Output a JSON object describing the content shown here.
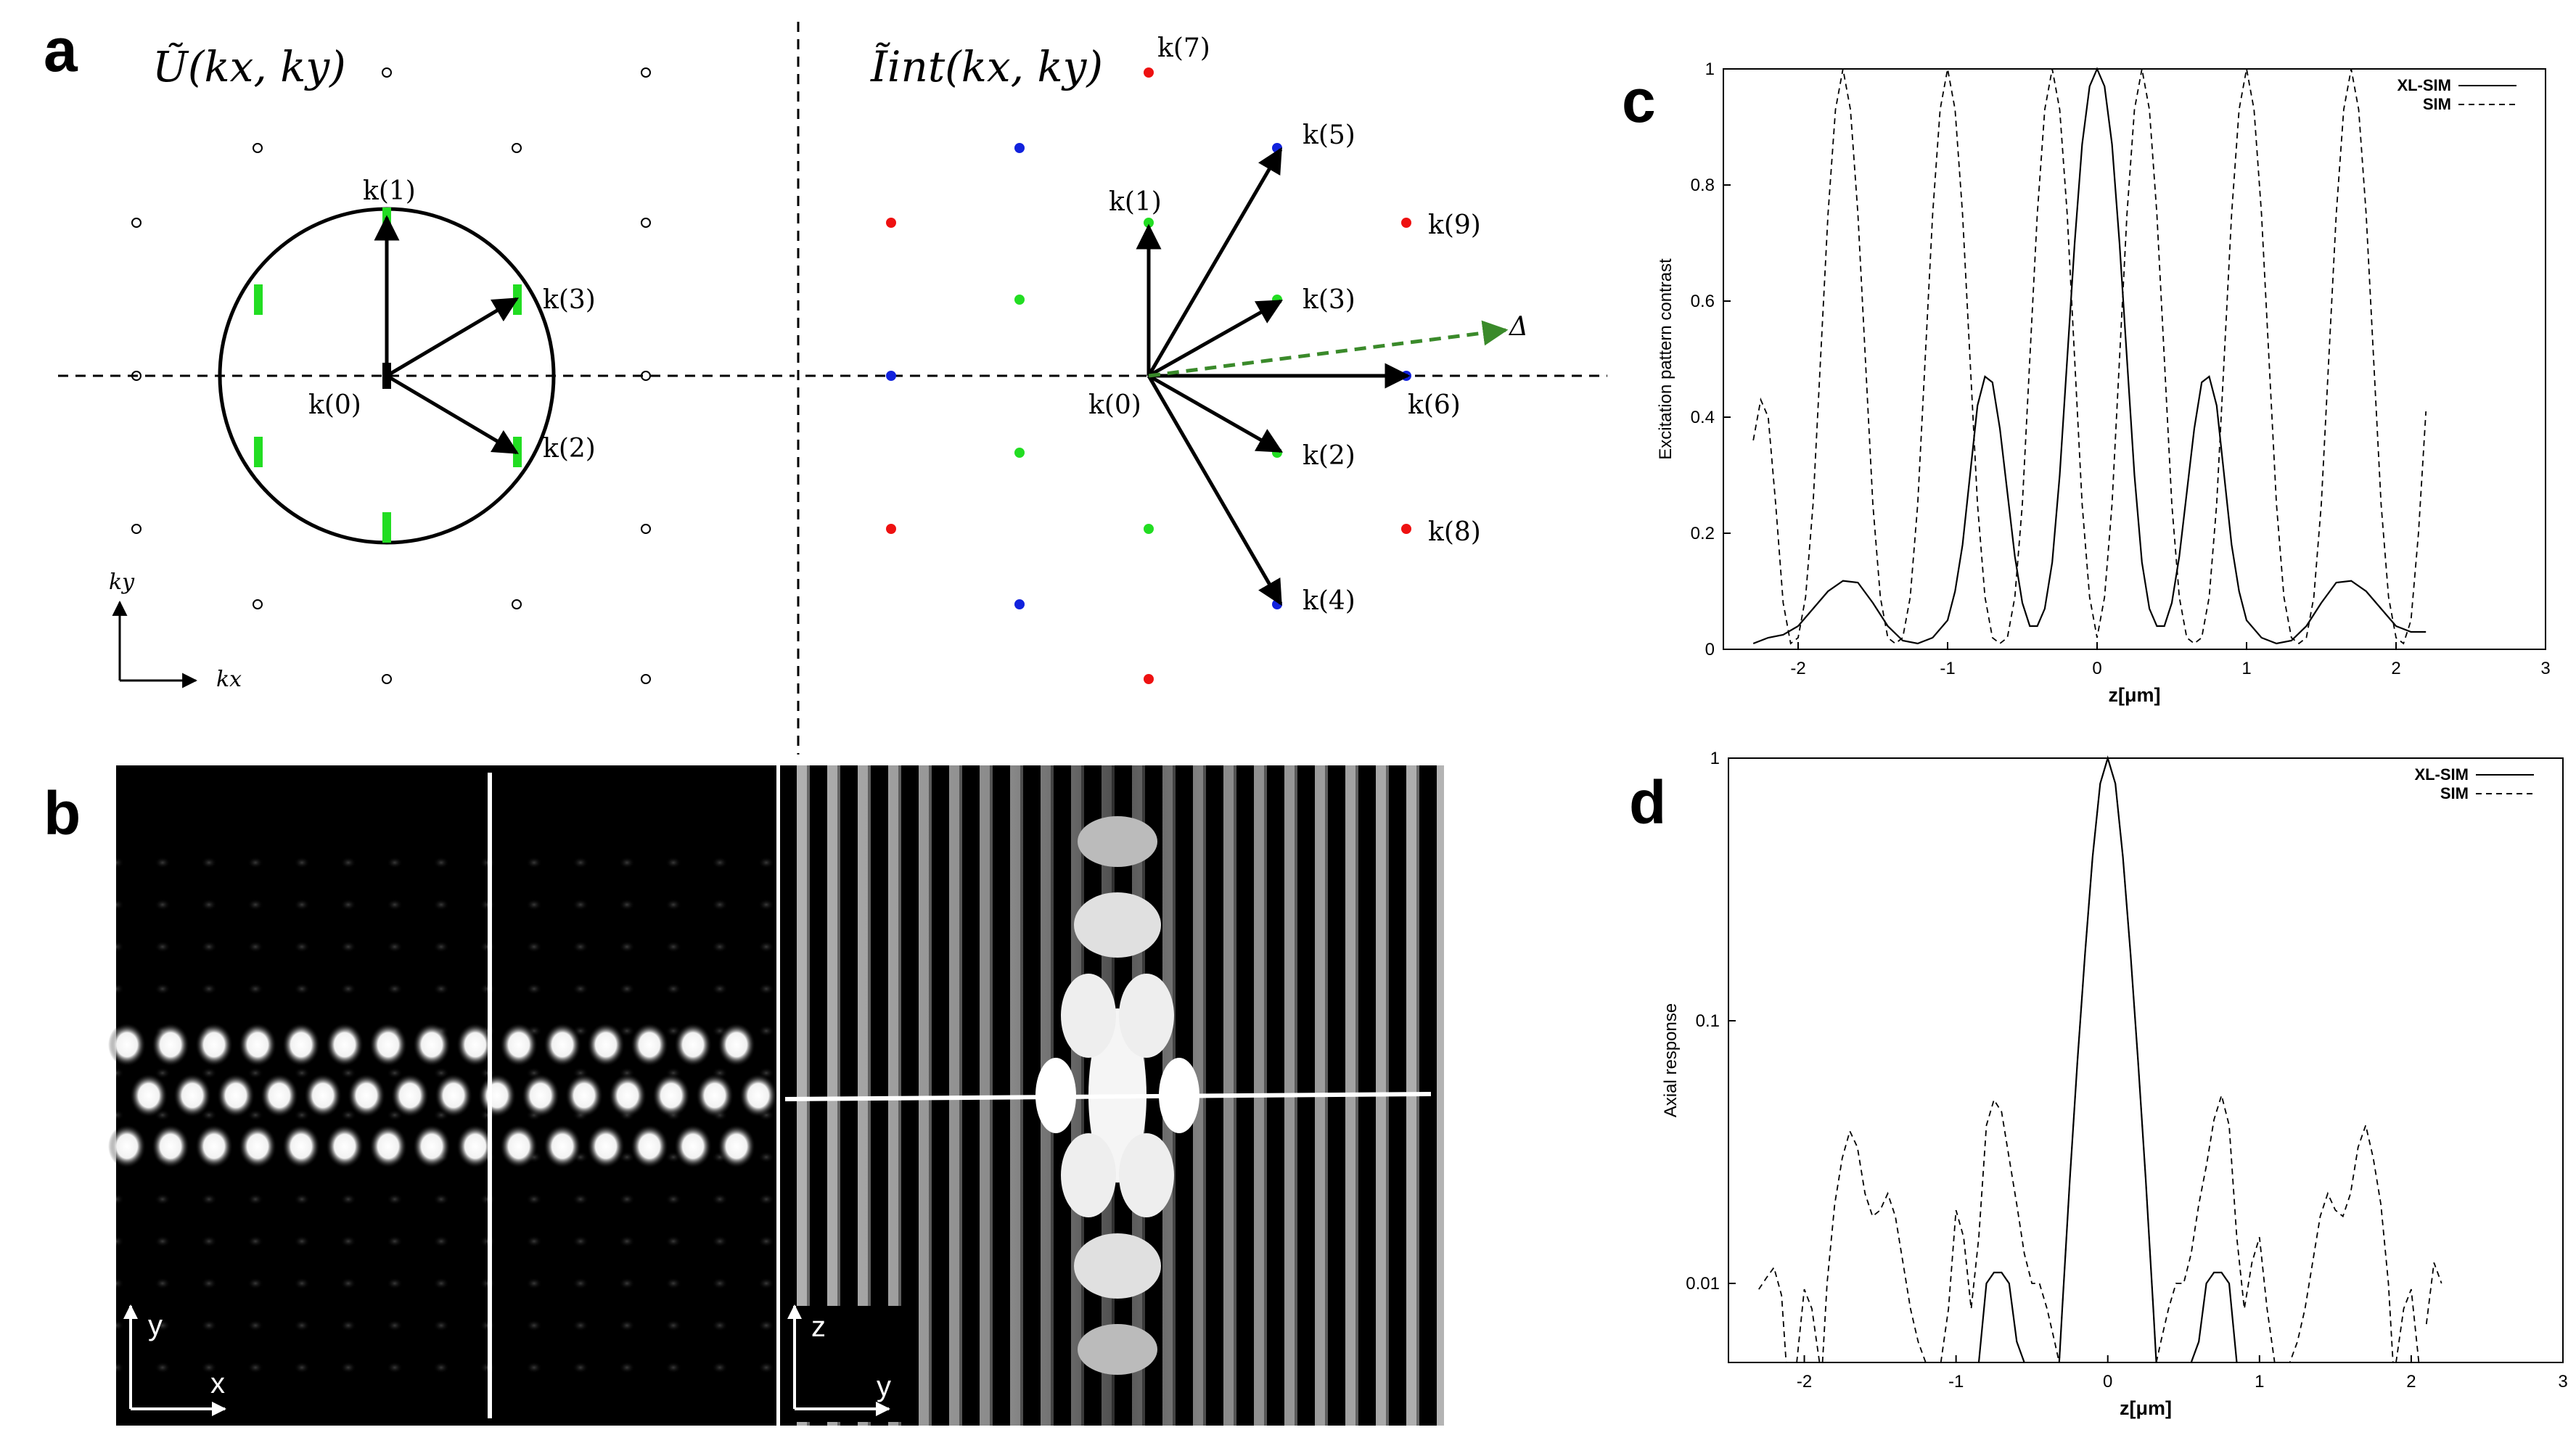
{
  "panels": {
    "a": {
      "letter": "a",
      "left_title": "Ũ(kx, ky)",
      "right_title": "Ĩint(kx, ky)",
      "kx": "kx",
      "ky": "ky",
      "left_vectors": [
        "k(0)",
        "k(1)",
        "k(2)",
        "k(3)"
      ],
      "right_vectors": [
        "k(0)",
        "k(1)",
        "k(2)",
        "k(3)",
        "k(4)",
        "k(5)",
        "k(6)",
        "k(7)",
        "k(8)",
        "k(9)"
      ],
      "delta": "Δ",
      "colors": {
        "green": "#22dd22",
        "red": "#ee1111",
        "blue": "#1122dd",
        "dashed_arrow": "#3a8a2a"
      }
    },
    "b": {
      "letter": "b",
      "left_axes": {
        "vertical": "y",
        "horizontal": "x"
      },
      "right_axes": {
        "vertical": "z",
        "horizontal": "y"
      }
    },
    "c": {
      "letter": "c"
    },
    "d": {
      "letter": "d"
    }
  },
  "chart_data": [
    {
      "id": "c",
      "type": "line",
      "title": "",
      "xlabel": "z[μm]",
      "ylabel": "Excitation pattern contrast",
      "xlim": [
        -2.5,
        3
      ],
      "ylim": [
        0,
        1
      ],
      "xticks": [
        "-2",
        "-1",
        "0",
        "1",
        "2",
        "3"
      ],
      "yticks": [
        "0",
        "0.2",
        "0.4",
        "0.6",
        "0.8",
        "1"
      ],
      "legend": {
        "placement": "top-right",
        "entries": [
          "XL-SIM",
          "SIM"
        ]
      },
      "series": [
        {
          "name": "XL-SIM",
          "style": "solid",
          "x": [
            -2.3,
            -2.2,
            -2.1,
            -2.0,
            -1.9,
            -1.8,
            -1.7,
            -1.6,
            -1.5,
            -1.4,
            -1.3,
            -1.2,
            -1.1,
            -1.0,
            -0.95,
            -0.9,
            -0.85,
            -0.8,
            -0.75,
            -0.7,
            -0.65,
            -0.6,
            -0.55,
            -0.5,
            -0.45,
            -0.4,
            -0.35,
            -0.3,
            -0.25,
            -0.2,
            -0.15,
            -0.1,
            -0.05,
            0.0,
            0.05,
            0.1,
            0.15,
            0.2,
            0.25,
            0.3,
            0.35,
            0.4,
            0.45,
            0.5,
            0.55,
            0.6,
            0.65,
            0.7,
            0.75,
            0.8,
            0.85,
            0.9,
            0.95,
            1.0,
            1.1,
            1.2,
            1.3,
            1.4,
            1.5,
            1.6,
            1.7,
            1.8,
            1.9,
            2.0,
            2.1,
            2.2
          ],
          "y": [
            0.01,
            0.02,
            0.025,
            0.04,
            0.07,
            0.1,
            0.118,
            0.115,
            0.08,
            0.04,
            0.015,
            0.01,
            0.02,
            0.05,
            0.1,
            0.18,
            0.3,
            0.42,
            0.47,
            0.46,
            0.38,
            0.27,
            0.16,
            0.08,
            0.04,
            0.04,
            0.07,
            0.15,
            0.3,
            0.5,
            0.7,
            0.87,
            0.97,
            1.0,
            0.97,
            0.87,
            0.7,
            0.5,
            0.3,
            0.15,
            0.07,
            0.04,
            0.04,
            0.08,
            0.16,
            0.27,
            0.38,
            0.46,
            0.47,
            0.42,
            0.3,
            0.18,
            0.1,
            0.05,
            0.02,
            0.01,
            0.015,
            0.04,
            0.08,
            0.115,
            0.118,
            0.1,
            0.07,
            0.04,
            0.03,
            0.03
          ]
        },
        {
          "name": "SIM",
          "style": "dashed",
          "x": [
            -2.3,
            -2.25,
            -2.2,
            -2.15,
            -2.1,
            -2.05,
            -2.0,
            -1.95,
            -1.9,
            -1.85,
            -1.8,
            -1.75,
            -1.7,
            -1.65,
            -1.6,
            -1.55,
            -1.5,
            -1.45,
            -1.4,
            -1.35,
            -1.3,
            -1.25,
            -1.2,
            -1.15,
            -1.1,
            -1.05,
            -1.0,
            -0.95,
            -0.9,
            -0.85,
            -0.8,
            -0.75,
            -0.7,
            -0.65,
            -0.6,
            -0.55,
            -0.5,
            -0.45,
            -0.4,
            -0.35,
            -0.3,
            -0.25,
            -0.2,
            -0.15,
            -0.1,
            -0.05,
            0.0,
            0.05,
            0.1,
            0.15,
            0.2,
            0.25,
            0.3,
            0.35,
            0.4,
            0.45,
            0.5,
            0.55,
            0.6,
            0.65,
            0.7,
            0.75,
            0.8,
            0.85,
            0.9,
            0.95,
            1.0,
            1.05,
            1.1,
            1.15,
            1.2,
            1.25,
            1.3,
            1.35,
            1.4,
            1.45,
            1.5,
            1.55,
            1.6,
            1.65,
            1.7,
            1.75,
            1.8,
            1.85,
            1.9,
            1.95,
            2.0,
            2.05,
            2.1,
            2.15,
            2.2
          ],
          "y": [
            0.36,
            0.43,
            0.4,
            0.25,
            0.08,
            0.01,
            0.02,
            0.09,
            0.25,
            0.5,
            0.75,
            0.93,
            1.0,
            0.93,
            0.75,
            0.5,
            0.25,
            0.09,
            0.02,
            0.01,
            0.02,
            0.09,
            0.25,
            0.5,
            0.75,
            0.93,
            1.0,
            0.93,
            0.75,
            0.5,
            0.25,
            0.09,
            0.02,
            0.01,
            0.02,
            0.09,
            0.25,
            0.5,
            0.75,
            0.93,
            1.0,
            0.93,
            0.75,
            0.5,
            0.25,
            0.09,
            0.02,
            0.09,
            0.25,
            0.5,
            0.75,
            0.93,
            1.0,
            0.93,
            0.75,
            0.5,
            0.25,
            0.09,
            0.02,
            0.01,
            0.02,
            0.09,
            0.25,
            0.5,
            0.75,
            0.93,
            1.0,
            0.93,
            0.75,
            0.5,
            0.25,
            0.09,
            0.02,
            0.01,
            0.02,
            0.09,
            0.25,
            0.5,
            0.75,
            0.93,
            1.0,
            0.93,
            0.75,
            0.5,
            0.25,
            0.09,
            0.02,
            0.01,
            0.05,
            0.2,
            0.41
          ]
        }
      ]
    },
    {
      "id": "d",
      "type": "line",
      "title": "",
      "xlabel": "z[μm]",
      "ylabel": "Axial response",
      "yscale": "log",
      "xlim": [
        -2.5,
        3
      ],
      "ylim": [
        0.005,
        1
      ],
      "xticks": [
        "-2",
        "-1",
        "0",
        "1",
        "2",
        "3"
      ],
      "yticks": [
        "0.01",
        "0.1",
        "1"
      ],
      "legend": {
        "placement": "top-right",
        "entries": [
          "XL-SIM",
          "SIM"
        ]
      },
      "series": [
        {
          "name": "XL-SIM",
          "style": "solid",
          "segments": [
            {
              "x": [
                -0.85,
                -0.8,
                -0.75,
                -0.7,
                -0.65,
                -0.6,
                -0.55
              ],
              "y": [
                0.005,
                0.01,
                0.011,
                0.011,
                0.01,
                0.006,
                0.005
              ]
            },
            {
              "x": [
                -0.32,
                -0.3,
                -0.25,
                -0.2,
                -0.15,
                -0.1,
                -0.05,
                0.0,
                0.05,
                0.1,
                0.15,
                0.2,
                0.25,
                0.3,
                0.32
              ],
              "y": [
                0.005,
                0.008,
                0.025,
                0.07,
                0.18,
                0.42,
                0.8,
                1.0,
                0.8,
                0.42,
                0.18,
                0.07,
                0.025,
                0.008,
                0.005
              ]
            },
            {
              "x": [
                0.55,
                0.6,
                0.65,
                0.7,
                0.75,
                0.8,
                0.85
              ],
              "y": [
                0.005,
                0.006,
                0.01,
                0.011,
                0.011,
                0.01,
                0.005
              ]
            }
          ]
        },
        {
          "name": "SIM",
          "style": "dashed",
          "segments": [
            {
              "x": [
                -2.3,
                -2.25,
                -2.2,
                -2.15,
                -2.12
              ],
              "y": [
                0.0095,
                0.0105,
                0.0115,
                0.009,
                0.005
              ]
            },
            {
              "x": [
                -2.05,
                -2.0,
                -1.95,
                -1.9
              ],
              "y": [
                0.005,
                0.0095,
                0.008,
                0.005
              ]
            },
            {
              "x": [
                -1.88,
                -1.85,
                -1.8,
                -1.75,
                -1.7,
                -1.65,
                -1.6,
                -1.55,
                -1.5,
                -1.45,
                -1.4,
                -1.35,
                -1.3,
                -1.25,
                -1.2,
                -1.17
              ],
              "y": [
                0.005,
                0.01,
                0.02,
                0.03,
                0.038,
                0.033,
                0.022,
                0.018,
                0.019,
                0.022,
                0.018,
                0.012,
                0.008,
                0.006,
                0.005,
                0.005
              ]
            },
            {
              "x": [
                -1.1,
                -1.05,
                -1.0,
                -0.95,
                -0.9,
                -0.85,
                -0.8,
                -0.75,
                -0.7,
                -0.65,
                -0.6,
                -0.55,
                -0.5,
                -0.45,
                -0.4,
                -0.35,
                -0.32
              ],
              "y": [
                0.005,
                0.008,
                0.019,
                0.015,
                0.008,
                0.015,
                0.04,
                0.05,
                0.045,
                0.03,
                0.02,
                0.013,
                0.01,
                0.01,
                0.008,
                0.006,
                0.005
              ]
            },
            {
              "x": [
                -0.32,
                -0.3,
                -0.25,
                -0.2,
                -0.15,
                -0.1,
                -0.05,
                0.0,
                0.05,
                0.1,
                0.15,
                0.2,
                0.25,
                0.3,
                0.32
              ],
              "y": [
                0.005,
                0.008,
                0.025,
                0.07,
                0.18,
                0.42,
                0.8,
                1.0,
                0.8,
                0.42,
                0.18,
                0.07,
                0.025,
                0.008,
                0.005
              ]
            },
            {
              "x": [
                0.32,
                0.35,
                0.4,
                0.45,
                0.5,
                0.55,
                0.6,
                0.65,
                0.7,
                0.75,
                0.8,
                0.85,
                0.9,
                0.95,
                1.0,
                1.05,
                1.1
              ],
              "y": [
                0.005,
                0.006,
                0.008,
                0.01,
                0.01,
                0.013,
                0.02,
                0.028,
                0.042,
                0.052,
                0.04,
                0.015,
                0.008,
                0.012,
                0.015,
                0.008,
                0.005
              ]
            },
            {
              "x": [
                1.17,
                1.2,
                1.25,
                1.3,
                1.35,
                1.4,
                1.45,
                1.5,
                1.55,
                1.6,
                1.65,
                1.7,
                1.75,
                1.8,
                1.85,
                1.88
              ],
              "y": [
                0.005,
                0.005,
                0.006,
                0.008,
                0.012,
                0.018,
                0.022,
                0.019,
                0.018,
                0.022,
                0.033,
                0.04,
                0.03,
                0.02,
                0.01,
                0.005
              ]
            },
            {
              "x": [
                1.9,
                1.95,
                2.0,
                2.05
              ],
              "y": [
                0.005,
                0.008,
                0.0095,
                0.005
              ]
            },
            {
              "x": [
                2.1,
                2.15,
                2.2
              ],
              "y": [
                0.007,
                0.012,
                0.01
              ]
            }
          ]
        }
      ]
    }
  ]
}
